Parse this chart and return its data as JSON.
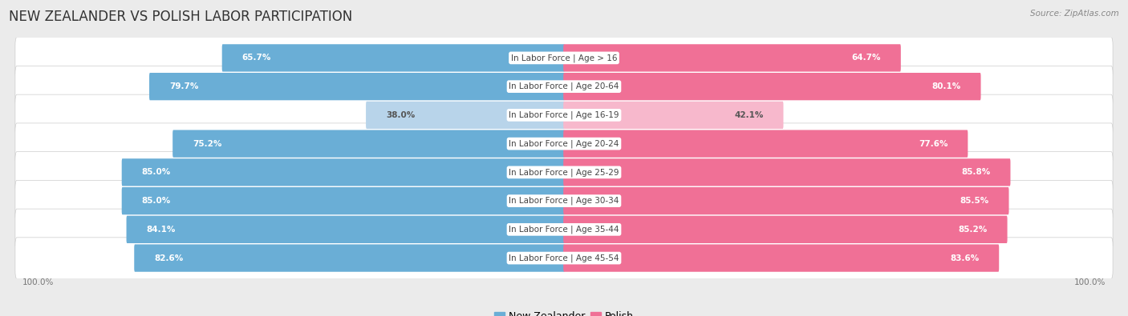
{
  "title": "NEW ZEALANDER VS POLISH LABOR PARTICIPATION",
  "source": "Source: ZipAtlas.com",
  "categories": [
    "In Labor Force | Age > 16",
    "In Labor Force | Age 20-64",
    "In Labor Force | Age 16-19",
    "In Labor Force | Age 20-24",
    "In Labor Force | Age 25-29",
    "In Labor Force | Age 30-34",
    "In Labor Force | Age 35-44",
    "In Labor Force | Age 45-54"
  ],
  "nz_values": [
    65.7,
    79.7,
    38.0,
    75.2,
    85.0,
    85.0,
    84.1,
    82.6
  ],
  "pl_values": [
    64.7,
    80.1,
    42.1,
    77.6,
    85.8,
    85.5,
    85.2,
    83.6
  ],
  "nz_color": "#6aaed6",
  "nz_color_light": "#b8d4ea",
  "pl_color": "#f07096",
  "pl_color_light": "#f7b8cc",
  "bg_color": "#ebebeb",
  "row_bg_color": "#f5f5f5",
  "row_bg_alt": "#e8e8e8",
  "label_bg": "#ffffff",
  "max_value": 100.0,
  "title_fontsize": 12,
  "label_fontsize": 7.5,
  "value_fontsize": 7.5,
  "legend_fontsize": 9,
  "light_rows": [
    2
  ]
}
